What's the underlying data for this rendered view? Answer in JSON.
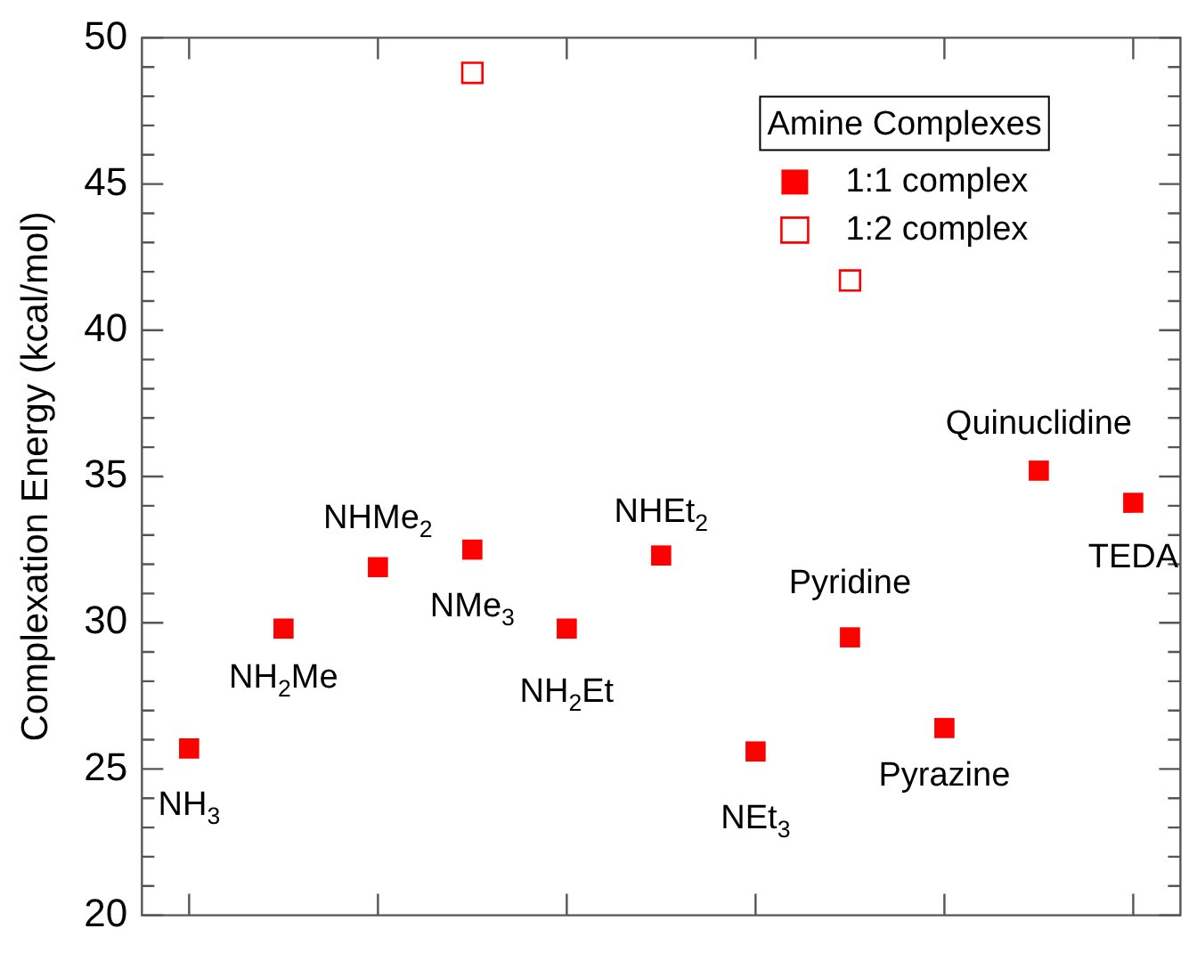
{
  "chart_data": {
    "type": "scatter",
    "ylabel": "Complexation Energy (kcal/mol)",
    "categories": [
      "NH$_{3}$",
      "NH$_{2}$Me",
      "NHMe$_{2}$",
      "NMe$_{3}$",
      "NH$_{2}$Et",
      "NHEt$_{2}$",
      "NEt$_{3}$",
      "Pyridine",
      "Pyrazine",
      "Quinuclidine",
      "TEDA"
    ],
    "series": [
      {
        "name": "1:1 complex",
        "color": "#ff0000",
        "values": [
          25.7,
          29.8,
          31.9,
          32.5,
          29.8,
          32.3,
          25.6,
          29.5,
          26.4,
          35.2,
          34.1
        ]
      },
      {
        "name": "1:2 complex",
        "color": "#ff0000",
        "values": [
          null,
          null,
          null,
          48.8,
          null,
          null,
          null,
          41.7,
          null,
          null,
          null
        ]
      }
    ],
    "legend_title": "Amine Complexes",
    "legend": "top right",
    "marker": "square",
    "ylim": [
      20,
      50
    ],
    "yticks": [
      20,
      25,
      30,
      35,
      40,
      45,
      50
    ],
    "grid": false,
    "tick_labels": "y"
  }
}
